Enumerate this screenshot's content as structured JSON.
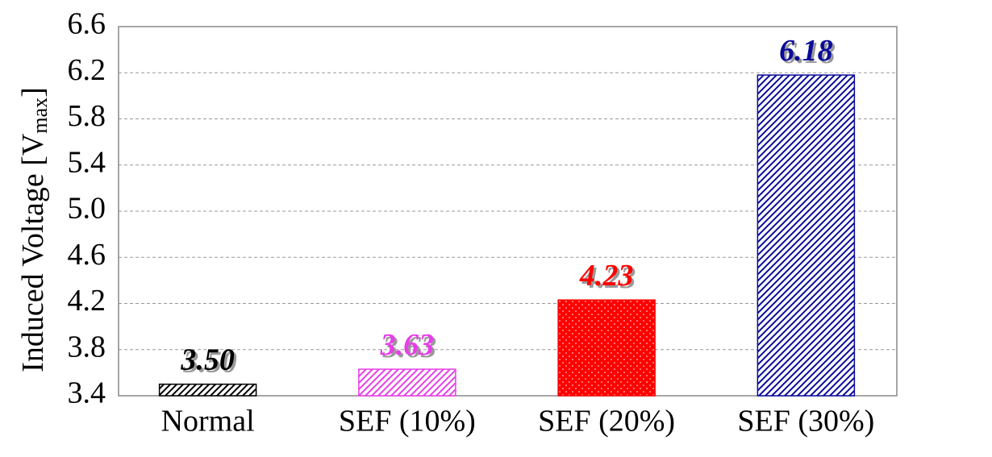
{
  "chart_data": {
    "type": "bar",
    "y_label": "Induced Voltage [V",
    "y_label_sub": "max",
    "y_label_end": "]",
    "categories": [
      "Normal",
      "SEF (10%)",
      "SEF (20%)",
      "SEF (30%)"
    ],
    "values": [
      3.5,
      3.63,
      4.23,
      6.18
    ],
    "value_labels": [
      "3.50",
      "3.63",
      "4.23",
      "6.18"
    ],
    "colors": [
      "#000000",
      "#e83ee8",
      "#ff0000",
      "#0a0a9a"
    ],
    "patterns": [
      "hatch",
      "hatch",
      "dots",
      "hatch"
    ],
    "ylim": [
      3.4,
      6.6
    ],
    "yticks": [
      3.4,
      3.8,
      4.2,
      4.6,
      {
        "value": 5,
        "label": "5.0"
      },
      5.4,
      5.8,
      6.2,
      6.6
    ],
    "grid": true
  }
}
